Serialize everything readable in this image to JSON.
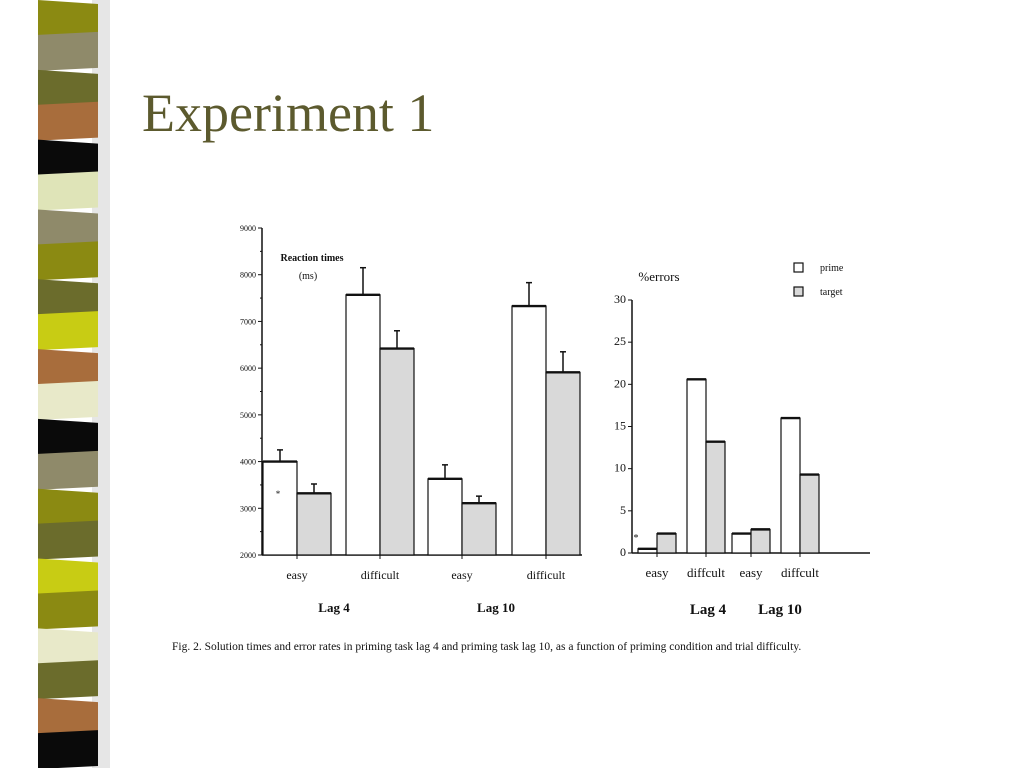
{
  "slide": {
    "title": "Experiment 1"
  },
  "colors": {
    "title": "#5c5a2e",
    "bar_prime": "#ffffff",
    "bar_target": "#d9d9d9",
    "bar_stroke": "#111111"
  },
  "stripe_colors": [
    "#8b8a12",
    "#8f8a6a",
    "#6b6c2c",
    "#a86d3c",
    "#0a0a0a",
    "#dfe4b8",
    "#8f8a6a",
    "#8b8a12",
    "#6b6c2c",
    "#c8cc14",
    "#a86d3c",
    "#e8e9c9",
    "#0a0a0a",
    "#8f8a6a",
    "#8b8a12",
    "#6b6c2c",
    "#c8cc14",
    "#8b8a12",
    "#e8e9c9",
    "#6b6c2c",
    "#a86d3c",
    "#0a0a0a"
  ],
  "caption": "Fig. 2. Solution times and error rates in priming task lag 4 and priming task lag 10, as a function of priming condition and trial difficulty.",
  "chart_data": [
    {
      "type": "bar",
      "title": "Reaction times",
      "subtitle": "(ms)",
      "ylim": [
        2000,
        9000
      ],
      "yticks": [
        "2000",
        "3000",
        "4000",
        "5000",
        "6000",
        "7000",
        "8000",
        "9000"
      ],
      "categories": [
        "easy",
        "difficult",
        "easy",
        "difficult"
      ],
      "groups": [
        "Lag 4",
        "Lag 10"
      ],
      "series": [
        {
          "name": "prime",
          "values": [
            4000,
            7570,
            3630,
            7330
          ],
          "errors": [
            250,
            580,
            300,
            500
          ]
        },
        {
          "name": "target",
          "values": [
            3320,
            6420,
            3110,
            5910
          ],
          "errors": [
            200,
            380,
            150,
            440
          ]
        }
      ],
      "annotations": [
        "*"
      ]
    },
    {
      "type": "bar",
      "title": "%errors",
      "ylim": [
        0,
        30
      ],
      "yticks": [
        "0",
        "5",
        "10",
        "15",
        "20",
        "25",
        "30"
      ],
      "categories": [
        "easy",
        "diffcult",
        "easy",
        "diffcult"
      ],
      "groups": [
        "Lag 4",
        "Lag 10"
      ],
      "legend": {
        "position": "top-right",
        "entries": [
          "prime",
          "target"
        ]
      },
      "series": [
        {
          "name": "prime",
          "values": [
            0.5,
            20.6,
            2.3,
            16.0
          ]
        },
        {
          "name": "target",
          "values": [
            2.3,
            13.2,
            2.8,
            9.3
          ]
        }
      ],
      "annotations": [
        "*"
      ]
    }
  ]
}
